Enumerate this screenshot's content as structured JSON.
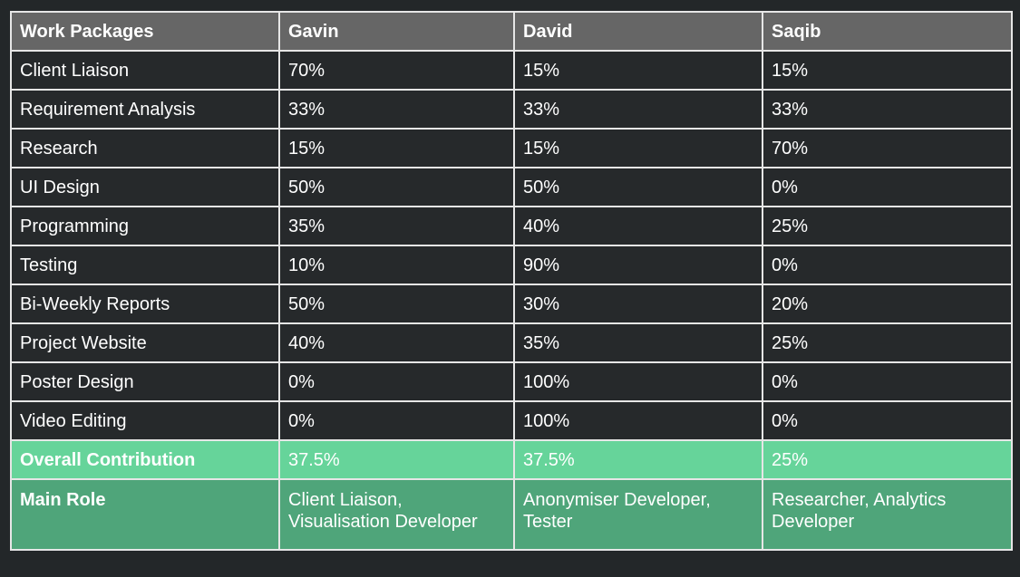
{
  "table": {
    "headers": [
      "Work Packages",
      "Gavin",
      "David",
      "Saqib"
    ],
    "rows": [
      [
        "Client Liaison",
        "70%",
        "15%",
        "15%"
      ],
      [
        "Requirement Analysis",
        "33%",
        "33%",
        "33%"
      ],
      [
        "Research",
        "15%",
        "15%",
        "70%"
      ],
      [
        "UI Design",
        "50%",
        "50%",
        "0%"
      ],
      [
        "Programming",
        "35%",
        "40%",
        "25%"
      ],
      [
        "Testing",
        "10%",
        "90%",
        "0%"
      ],
      [
        "Bi-Weekly Reports",
        "50%",
        "30%",
        "20%"
      ],
      [
        "Project Website",
        "40%",
        "35%",
        "25%"
      ],
      [
        "Poster Design",
        "0%",
        "100%",
        "0%"
      ],
      [
        "Video Editing",
        "0%",
        "100%",
        "0%"
      ]
    ],
    "overall": [
      "Overall Contribution",
      "37.5%",
      "37.5%",
      "25%"
    ],
    "main_role": [
      "Main Role",
      "Client Liaison, Visualisation Developer",
      "Anonymiser Developer, Tester",
      "Researcher, Analytics Developer"
    ]
  },
  "colors": {
    "page_background": "#232729",
    "header_background": "#666666",
    "row_background": "#26292b",
    "overall_background": "#66d49a",
    "role_background": "#4fa57a",
    "grid_lines": "#e6e6e6"
  }
}
